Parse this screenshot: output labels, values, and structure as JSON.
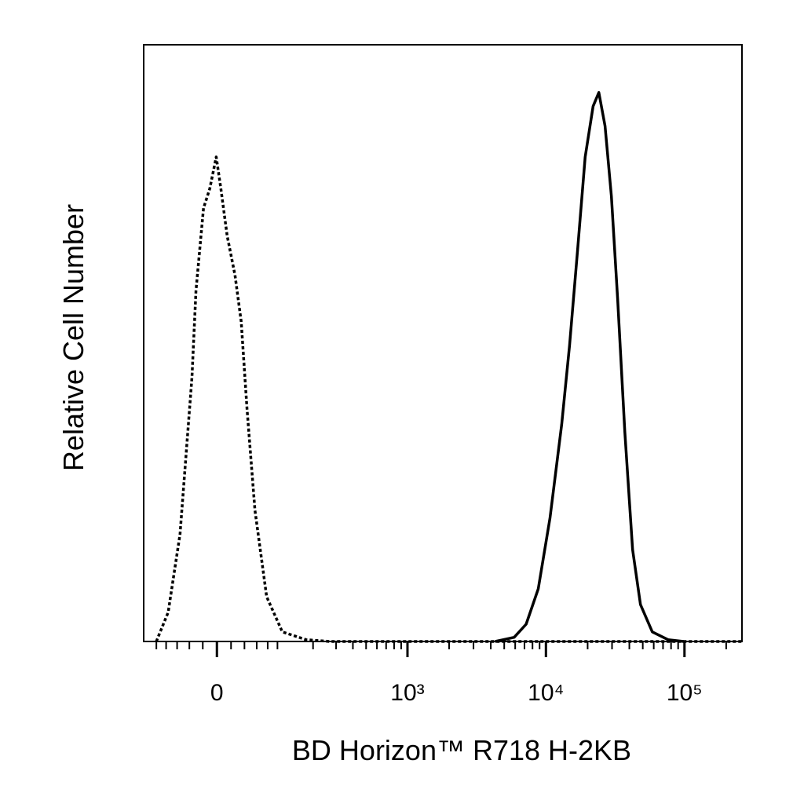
{
  "chart_data": {
    "type": "line",
    "xlabel": "BD Horizon™ R718 H-2KB",
    "ylabel": "Relative Cell Number",
    "xscale": "biexponential",
    "xlim": [
      -130,
      260000
    ],
    "ylim": [
      0,
      100
    ],
    "xticks": [
      {
        "value": 0,
        "label": "0"
      },
      {
        "value": 1000,
        "label": "10³"
      },
      {
        "value": 10000,
        "label": "10⁴"
      },
      {
        "value": 100000,
        "label": "10⁵"
      }
    ],
    "xminorticks": [
      -100,
      -80,
      -60,
      -40,
      -20,
      20,
      40,
      60,
      80,
      100,
      200,
      300,
      400,
      500,
      600,
      700,
      800,
      900,
      2000,
      3000,
      4000,
      5000,
      6000,
      7000,
      8000,
      9000,
      20000,
      30000,
      40000,
      50000,
      60000,
      70000,
      80000,
      90000,
      200000
    ],
    "series": [
      {
        "color": "#000000",
        "line_style": "dotted",
        "x": [
          -100,
          -76,
          -55,
          -36,
          -30,
          -19,
          -10,
          -1,
          5.5,
          14.4,
          25.7,
          35,
          44,
          57,
          78,
          111,
          176,
          268,
          1000,
          100000,
          260000
        ],
        "values": [
          0,
          4.9,
          18,
          44.3,
          58.8,
          72.6,
          75.9,
          81.2,
          75.9,
          68,
          61.4,
          53.6,
          39,
          22,
          7.5,
          1.6,
          0.3,
          0,
          0,
          0,
          0
        ]
      },
      {
        "color": "#000000",
        "line_style": "solid",
        "x": [
          4300,
          5900,
          7200,
          8800,
          10700,
          13000,
          14800,
          16900,
          19200,
          21900,
          24100,
          26700,
          29700,
          32900,
          37100,
          42200,
          48100,
          58600,
          76100,
          98800
        ],
        "values": [
          0,
          0.7,
          2.9,
          8.8,
          20.7,
          36.4,
          49.6,
          65.4,
          81.2,
          89.7,
          92,
          86.4,
          74.6,
          57.5,
          35.1,
          15.4,
          6.2,
          1.6,
          0.3,
          0
        ]
      }
    ]
  }
}
